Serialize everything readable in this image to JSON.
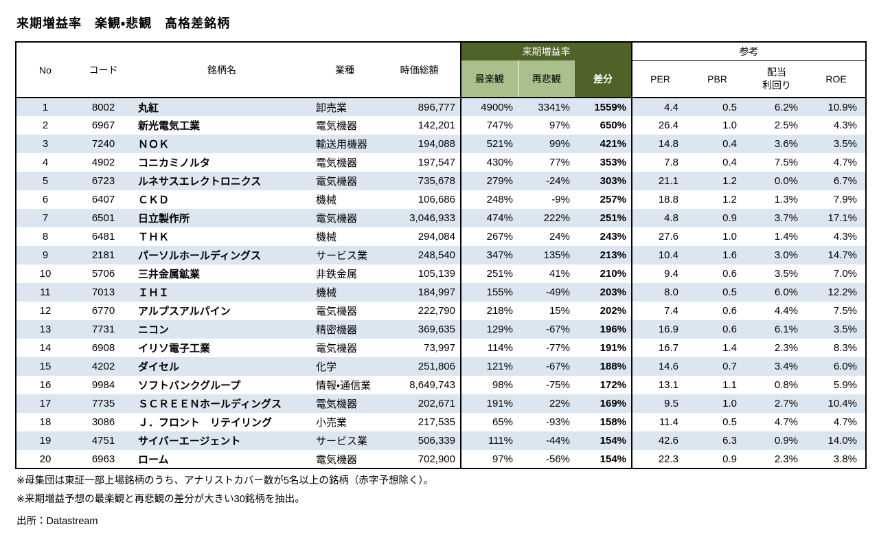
{
  "title": "来期増益率　楽観・悲観　高格差銘柄",
  "colors": {
    "dark_green": "#4F6228",
    "light_green": "#A9C08C",
    "stripe_blue": "#DCE6F1"
  },
  "table": {
    "header": {
      "no": "No",
      "code": "コード",
      "name": "銘柄名",
      "industry": "業種",
      "market_cap": "時価総額",
      "group_gain": "来期増益率",
      "optimistic": "最楽観",
      "pessimistic": "再悲観",
      "difference": "差分",
      "group_reference": "参考",
      "per": "PER",
      "pbr": "PBR",
      "dividend_yield": "配当\n利回り",
      "roe": "ROE"
    },
    "rows": [
      [
        "1",
        "8002",
        "丸紅",
        "卸売業",
        "896,777",
        "4900%",
        "3341%",
        "1559%",
        "4.4",
        "0.5",
        "6.2%",
        "10.9%"
      ],
      [
        "2",
        "6967",
        "新光電気工業",
        "電気機器",
        "142,201",
        "747%",
        "97%",
        "650%",
        "26.4",
        "1.0",
        "2.5%",
        "4.3%"
      ],
      [
        "3",
        "7240",
        "ＮＯＫ",
        "輸送用機器",
        "194,088",
        "521%",
        "99%",
        "421%",
        "14.8",
        "0.4",
        "3.6%",
        "3.5%"
      ],
      [
        "4",
        "4902",
        "コニカミノルタ",
        "電気機器",
        "197,547",
        "430%",
        "77%",
        "353%",
        "7.8",
        "0.4",
        "7.5%",
        "4.7%"
      ],
      [
        "5",
        "6723",
        "ルネサスエレクトロニクス",
        "電気機器",
        "735,678",
        "279%",
        "-24%",
        "303%",
        "21.1",
        "1.2",
        "0.0%",
        "6.7%"
      ],
      [
        "6",
        "6407",
        "ＣＫＤ",
        "機械",
        "106,686",
        "248%",
        "-9%",
        "257%",
        "18.8",
        "1.2",
        "1.3%",
        "7.9%"
      ],
      [
        "7",
        "6501",
        "日立製作所",
        "電気機器",
        "3,046,933",
        "474%",
        "222%",
        "251%",
        "4.8",
        "0.9",
        "3.7%",
        "17.1%"
      ],
      [
        "8",
        "6481",
        "ＴＨＫ",
        "機械",
        "294,084",
        "267%",
        "24%",
        "243%",
        "27.6",
        "1.0",
        "1.4%",
        "4.3%"
      ],
      [
        "9",
        "2181",
        "パーソルホールディングス",
        "サービス業",
        "248,540",
        "347%",
        "135%",
        "213%",
        "10.4",
        "1.6",
        "3.0%",
        "14.7%"
      ],
      [
        "10",
        "5706",
        "三井金属鉱業",
        "非鉄金属",
        "105,139",
        "251%",
        "41%",
        "210%",
        "9.4",
        "0.6",
        "3.5%",
        "7.0%"
      ],
      [
        "11",
        "7013",
        "ＩＨＩ",
        "機械",
        "184,997",
        "155%",
        "-49%",
        "203%",
        "8.0",
        "0.5",
        "6.0%",
        "12.2%"
      ],
      [
        "12",
        "6770",
        "アルプスアルパイン",
        "電気機器",
        "222,790",
        "218%",
        "15%",
        "202%",
        "7.4",
        "0.6",
        "4.4%",
        "7.5%"
      ],
      [
        "13",
        "7731",
        "ニコン",
        "精密機器",
        "369,635",
        "129%",
        "-67%",
        "196%",
        "16.9",
        "0.6",
        "6.1%",
        "3.5%"
      ],
      [
        "14",
        "6908",
        "イリソ電子工業",
        "電気機器",
        "73,997",
        "114%",
        "-77%",
        "191%",
        "16.7",
        "1.4",
        "2.3%",
        "8.3%"
      ],
      [
        "15",
        "4202",
        "ダイセル",
        "化学",
        "251,806",
        "121%",
        "-67%",
        "188%",
        "14.6",
        "0.7",
        "3.4%",
        "6.0%"
      ],
      [
        "16",
        "9984",
        "ソフトバンクグループ",
        "情報・通信業",
        "8,649,743",
        "98%",
        "-75%",
        "172%",
        "13.1",
        "1.1",
        "0.8%",
        "5.9%"
      ],
      [
        "17",
        "7735",
        "ＳＣＲＥＥＮホールディングス",
        "電気機器",
        "202,671",
        "191%",
        "22%",
        "169%",
        "9.5",
        "1.0",
        "2.7%",
        "10.4%"
      ],
      [
        "18",
        "3086",
        "Ｊ．フロント　リテイリング",
        "小売業",
        "217,535",
        "65%",
        "-93%",
        "158%",
        "11.4",
        "0.5",
        "4.7%",
        "4.7%"
      ],
      [
        "19",
        "4751",
        "サイバーエージェント",
        "サービス業",
        "506,339",
        "111%",
        "-44%",
        "154%",
        "42.6",
        "6.3",
        "0.9%",
        "14.0%"
      ],
      [
        "20",
        "6963",
        "ローム",
        "電気機器",
        "702,900",
        "97%",
        "-56%",
        "154%",
        "22.3",
        "0.9",
        "2.3%",
        "3.8%"
      ]
    ]
  },
  "footnotes": [
    "※母集団は東証一部上場銘柄のうち、アナリストカバー数が5名以上の銘柄（赤字予想除く）。",
    "※来期増益予想の最楽観と再悲観の差分が大きい30銘柄を抽出。"
  ],
  "source": "出所：Datastream"
}
